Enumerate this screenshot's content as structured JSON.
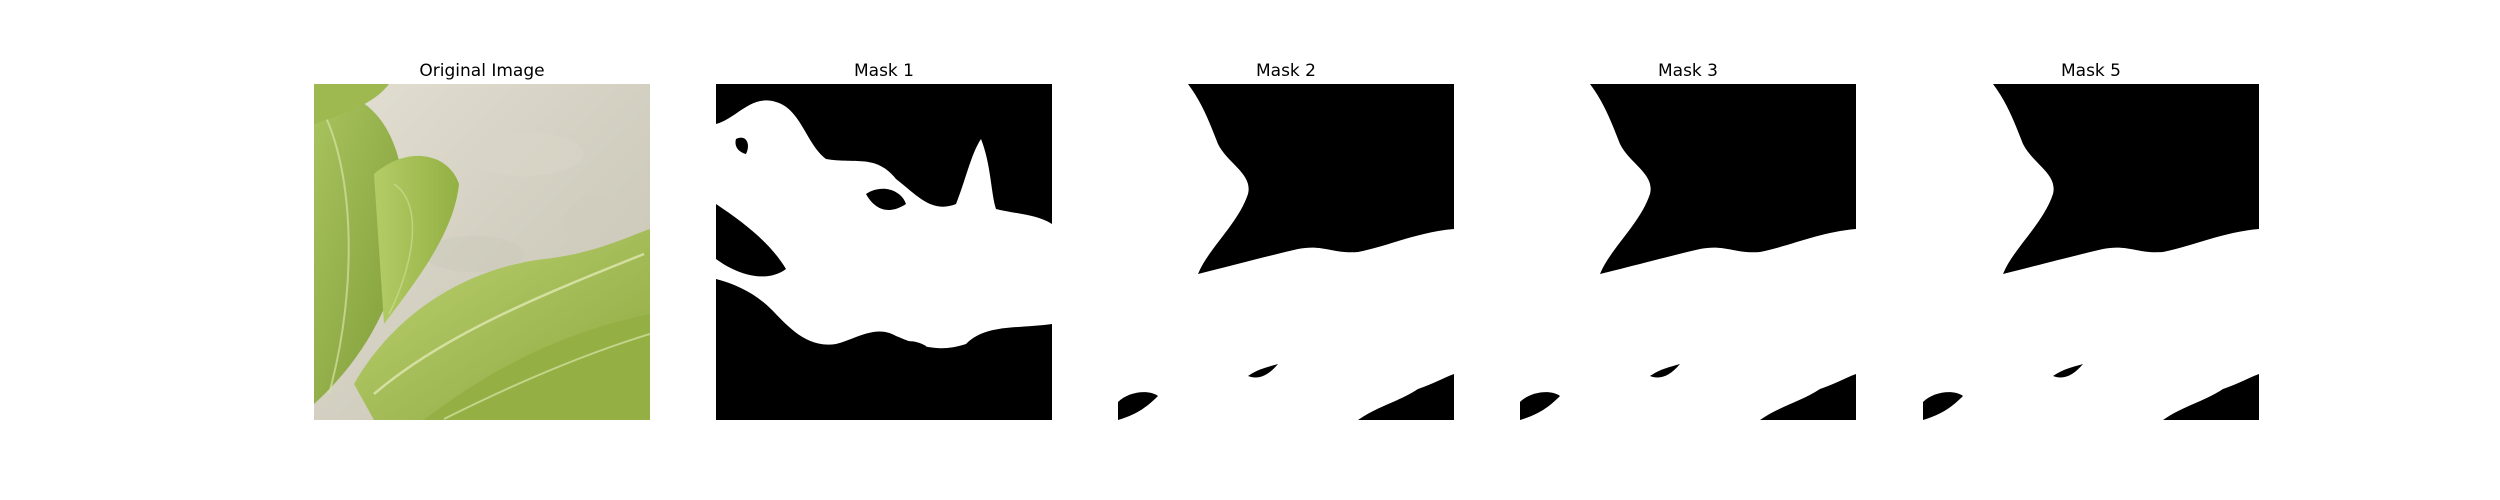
{
  "figure": {
    "panels": [
      {
        "title": "Original Image",
        "kind": "photo",
        "subject": "green-leaves-on-pale-wall"
      },
      {
        "title": "Mask 1",
        "kind": "mask",
        "colors": {
          "foreground": "#ffffff",
          "background": "#000000"
        }
      },
      {
        "title": "Mask 2",
        "kind": "mask",
        "colors": {
          "foreground": "#ffffff",
          "background": "#000000"
        }
      },
      {
        "title": "Mask 3",
        "kind": "mask",
        "colors": {
          "foreground": "#ffffff",
          "background": "#000000"
        }
      },
      {
        "title": "Mask 5",
        "kind": "mask",
        "colors": {
          "foreground": "#ffffff",
          "background": "#000000"
        }
      }
    ]
  }
}
